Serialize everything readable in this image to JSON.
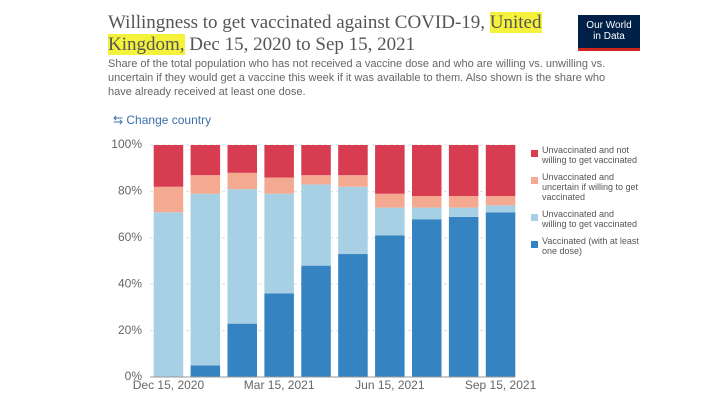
{
  "chart_data": {
    "type": "stacked-bar",
    "title": [
      "Willingness to get vaccinated against COVID-19,",
      "United Kingdom,",
      "Dec 15, 2020 to Sep 15, 2021"
    ],
    "title_highlight": 1,
    "subtitle": "Share of the total population who has not received a vaccine dose and who are willing vs. unwilling vs. uncertain if they would get a vaccine this week if it was available to them. Also shown is the share who have already received at least one dose.",
    "logo": "Our World in Data",
    "change_country": "Change country",
    "categories": [
      "Dec 15, 2020",
      null,
      null,
      "Mar 15, 2021",
      null,
      null,
      "Jun 15, 2021",
      null,
      null,
      "Sep 15, 2021"
    ],
    "series": [
      {
        "name": "Unvaccinated and not willing to get vaccinated",
        "color": "#d73c50",
        "values": [
          18,
          13,
          12,
          14,
          13,
          13,
          21,
          22,
          22,
          22
        ]
      },
      {
        "name": "Unvaccinated and uncertain if willing to get vaccinated",
        "color": "#f4aa90",
        "values": [
          11,
          8,
          7,
          7,
          4,
          5,
          6,
          5,
          5,
          4
        ]
      },
      {
        "name": "Unvaccinated and willing to get vaccinated",
        "color": "#a8d0e4",
        "values": [
          71,
          74,
          58,
          43,
          35,
          29,
          12,
          5,
          4,
          3
        ]
      },
      {
        "name": "Vaccinated (with at least one dose)",
        "color": "#3583c0",
        "values": [
          0,
          5,
          23,
          36,
          48,
          53,
          61,
          68,
          69,
          71
        ]
      }
    ],
    "ylim": [
      0,
      100
    ],
    "yticks": [
      {
        "value": 0,
        "label": "0%"
      },
      {
        "value": 20,
        "label": "20%"
      },
      {
        "value": 40,
        "label": "40%"
      },
      {
        "value": 60,
        "label": "60%"
      },
      {
        "value": 80,
        "label": "80%"
      },
      {
        "value": 100,
        "label": "100%"
      }
    ],
    "grid": true
  }
}
